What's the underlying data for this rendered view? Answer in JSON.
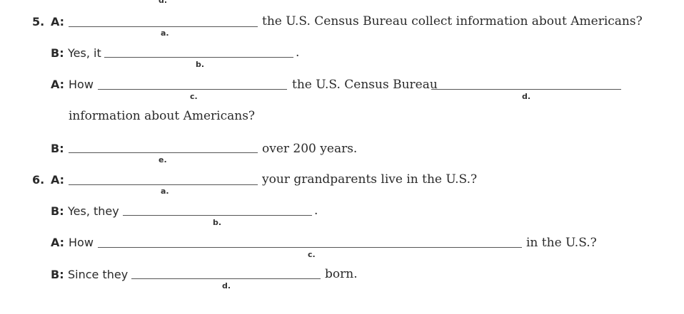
{
  "top_cut_label": "d.",
  "ex5": {
    "number": "5.",
    "l1": {
      "speaker": "A:",
      "blank_label": "a.",
      "after": "the U.S. Census Bureau collect information about Americans?"
    },
    "l2": {
      "speaker": "B:",
      "before": "Yes, it",
      "blank_label": "b.",
      "end": "."
    },
    "l3": {
      "speaker": "A:",
      "before": "How",
      "blank_c_label": "c.",
      "middle": "the U.S. Census Bureau",
      "blank_d_label": "d."
    },
    "l4": {
      "text": "information about Americans?"
    },
    "l5": {
      "speaker": "B:",
      "blank_label": "e.",
      "after": "over 200 years."
    }
  },
  "ex6": {
    "number": "6.",
    "l1": {
      "speaker": "A:",
      "blank_label": "a.",
      "after": "your grandparents live in the U.S.?"
    },
    "l2": {
      "speaker": "B:",
      "before": "Yes, they",
      "blank_label": "b.",
      "end": "."
    },
    "l3": {
      "speaker": "A:",
      "before": "How",
      "blank_label": "c.",
      "after": "in the U.S.?"
    },
    "l4": {
      "speaker": "B:",
      "before": "Since they",
      "blank_label": "d.",
      "after": "born."
    }
  }
}
